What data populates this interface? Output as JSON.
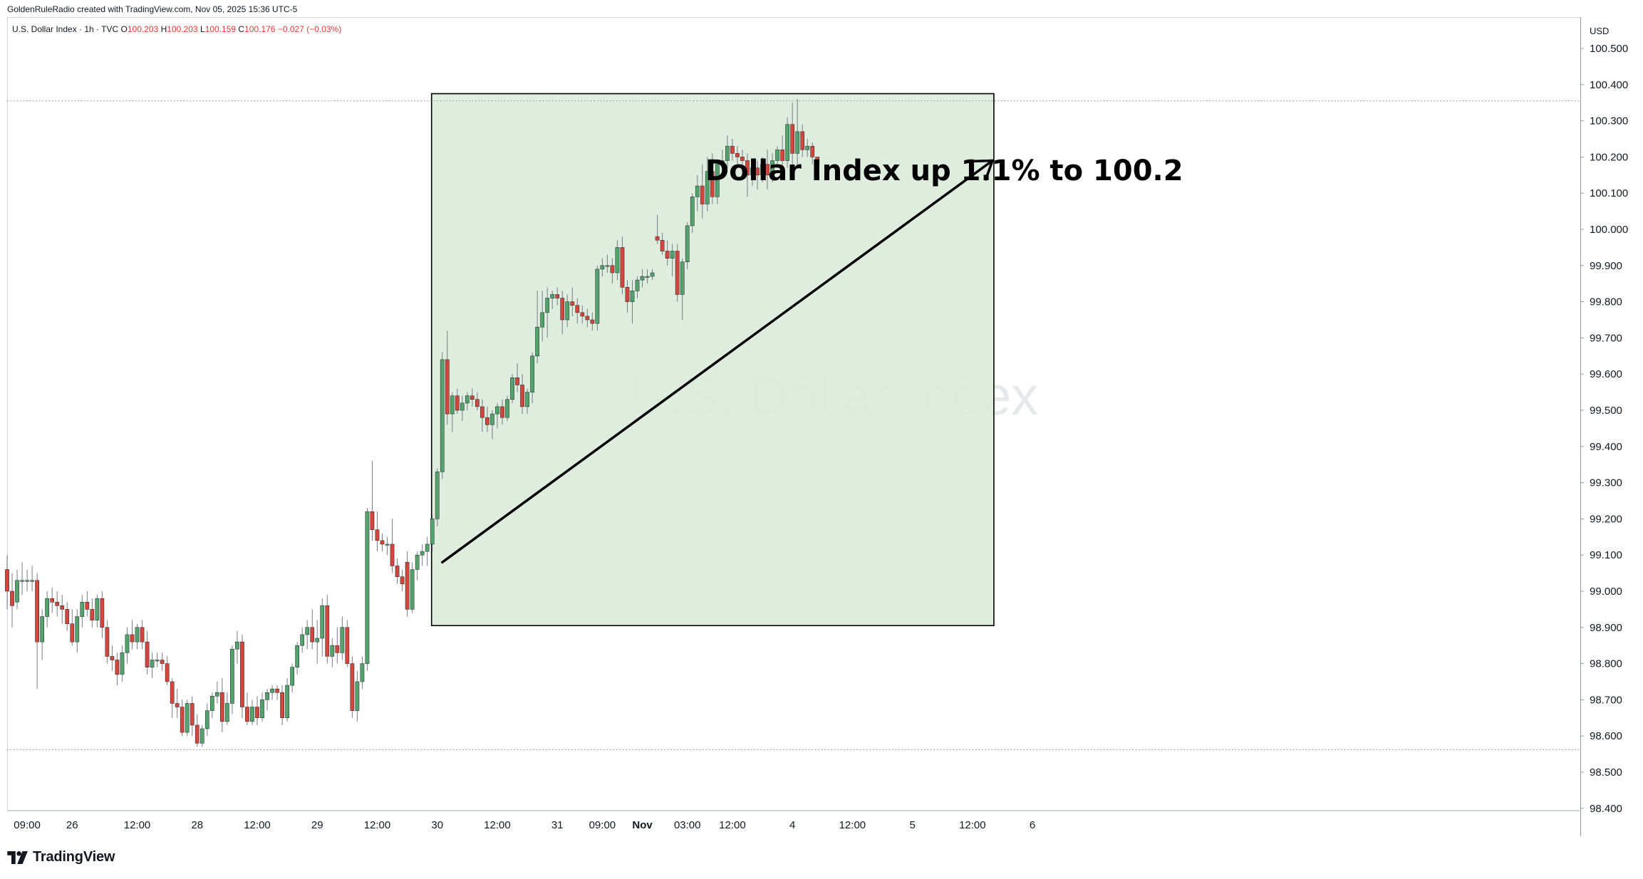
{
  "header": {
    "credit": "GoldenRuleRadio created with TradingView.com, Nov 05, 2025 15:36 UTC-5",
    "symbol": "U.S. Dollar Index · 1h · TVC",
    "open_label": "O",
    "open": "100.203",
    "high_label": "H",
    "high": "100.203",
    "low_label": "L",
    "low": "100.159",
    "close_label": "C",
    "close": "100.176",
    "change": "−0.027 (−0.03%)"
  },
  "watermark": "U.S. Dollar Index",
  "annotation": {
    "text": "Dollar Index up 1.1% to 100.2",
    "box_color": "#dcecdb"
  },
  "footer": {
    "brand": "TradingView"
  },
  "colors": {
    "up": "#53a36b",
    "down": "#d2463c",
    "wick": "#787b86",
    "annotation_box": "#dcecdb"
  },
  "chart_data": {
    "type": "candlestick",
    "timeframe": "1h",
    "currency_label": "USD",
    "y_ticks": [
      "100.500",
      "100.400",
      "100.300",
      "100.200",
      "100.100",
      "100.000",
      "99.900",
      "99.800",
      "99.700",
      "99.600",
      "99.500",
      "99.400",
      "99.300",
      "99.200",
      "99.100",
      "99.000",
      "98.900",
      "98.800",
      "98.700",
      "98.600",
      "98.500",
      "98.400"
    ],
    "ylim": [
      98.38,
      100.55
    ],
    "x_ticks": [
      {
        "label": "09:00",
        "bar": 4
      },
      {
        "label": "26",
        "bar": 13
      },
      {
        "label": "12:00",
        "bar": 26
      },
      {
        "label": "28",
        "bar": 38
      },
      {
        "label": "12:00",
        "bar": 50
      },
      {
        "label": "29",
        "bar": 62
      },
      {
        "label": "12:00",
        "bar": 74
      },
      {
        "label": "30",
        "bar": 86
      },
      {
        "label": "12:00",
        "bar": 98
      },
      {
        "label": "31",
        "bar": 110
      },
      {
        "label": "09:00",
        "bar": 119
      },
      {
        "label": "Nov",
        "bar": 127
      },
      {
        "label": "03:00",
        "bar": 136
      },
      {
        "label": "12:00",
        "bar": 145
      },
      {
        "label": "4",
        "bar": 157
      },
      {
        "label": "12:00",
        "bar": 169
      },
      {
        "label": "5",
        "bar": 181
      },
      {
        "label": "12:00",
        "bar": 193
      },
      {
        "label": "6",
        "bar": 205
      }
    ],
    "range_lines": [
      100.355,
      98.562
    ],
    "annotation_range": {
      "from_bar": 85,
      "to_bar": 197,
      "low": 98.905,
      "high": 100.375
    },
    "trend_arrow": {
      "from_bar": 87,
      "from_price": 99.08,
      "to_bar": 197,
      "to_price": 100.19
    },
    "candles": [
      {
        "o": 99.06,
        "h": 99.1,
        "l": 98.95,
        "c": 99.0
      },
      {
        "o": 99.0,
        "h": 99.05,
        "l": 98.9,
        "c": 98.96
      },
      {
        "o": 98.97,
        "h": 99.06,
        "l": 98.95,
        "c": 99.03
      },
      {
        "o": 99.03,
        "h": 99.08,
        "l": 98.99,
        "c": 99.03
      },
      {
        "o": 99.03,
        "h": 99.06,
        "l": 99.0,
        "c": 99.03
      },
      {
        "o": 99.03,
        "h": 99.07,
        "l": 99.0,
        "c": 99.03
      },
      {
        "o": 99.03,
        "h": 99.05,
        "l": 98.73,
        "c": 98.86
      },
      {
        "o": 98.86,
        "h": 98.95,
        "l": 98.81,
        "c": 98.93
      },
      {
        "o": 98.93,
        "h": 99.0,
        "l": 98.9,
        "c": 98.98
      },
      {
        "o": 98.98,
        "h": 99.01,
        "l": 98.94,
        "c": 98.97
      },
      {
        "o": 98.97,
        "h": 99.0,
        "l": 98.93,
        "c": 98.96
      },
      {
        "o": 98.96,
        "h": 98.99,
        "l": 98.91,
        "c": 98.95
      },
      {
        "o": 98.95,
        "h": 98.97,
        "l": 98.89,
        "c": 98.91
      },
      {
        "o": 98.91,
        "h": 98.95,
        "l": 98.85,
        "c": 98.86
      },
      {
        "o": 98.86,
        "h": 98.95,
        "l": 98.83,
        "c": 98.93
      },
      {
        "o": 98.93,
        "h": 98.99,
        "l": 98.9,
        "c": 98.97
      },
      {
        "o": 98.97,
        "h": 99.0,
        "l": 98.93,
        "c": 98.95
      },
      {
        "o": 98.95,
        "h": 98.98,
        "l": 98.9,
        "c": 98.92
      },
      {
        "o": 98.92,
        "h": 98.99,
        "l": 98.9,
        "c": 98.98
      },
      {
        "o": 98.98,
        "h": 99.0,
        "l": 98.87,
        "c": 98.9
      },
      {
        "o": 98.9,
        "h": 98.92,
        "l": 98.8,
        "c": 98.82
      },
      {
        "o": 98.82,
        "h": 98.85,
        "l": 98.78,
        "c": 98.81
      },
      {
        "o": 98.81,
        "h": 98.83,
        "l": 98.74,
        "c": 98.77
      },
      {
        "o": 98.77,
        "h": 98.85,
        "l": 98.75,
        "c": 98.83
      },
      {
        "o": 98.83,
        "h": 98.9,
        "l": 98.8,
        "c": 98.88
      },
      {
        "o": 98.88,
        "h": 98.92,
        "l": 98.84,
        "c": 98.86
      },
      {
        "o": 98.86,
        "h": 98.91,
        "l": 98.84,
        "c": 98.9
      },
      {
        "o": 98.9,
        "h": 98.92,
        "l": 98.84,
        "c": 98.86
      },
      {
        "o": 98.86,
        "h": 98.89,
        "l": 98.77,
        "c": 98.79
      },
      {
        "o": 98.79,
        "h": 98.83,
        "l": 98.76,
        "c": 98.81
      },
      {
        "o": 98.81,
        "h": 98.83,
        "l": 98.79,
        "c": 98.81
      },
      {
        "o": 98.81,
        "h": 98.83,
        "l": 98.78,
        "c": 98.8
      },
      {
        "o": 98.8,
        "h": 98.82,
        "l": 98.74,
        "c": 98.75
      },
      {
        "o": 98.75,
        "h": 98.76,
        "l": 98.65,
        "c": 98.69
      },
      {
        "o": 98.69,
        "h": 98.73,
        "l": 98.65,
        "c": 98.68
      },
      {
        "o": 98.68,
        "h": 98.7,
        "l": 98.6,
        "c": 98.61
      },
      {
        "o": 98.61,
        "h": 98.7,
        "l": 98.6,
        "c": 98.69
      },
      {
        "o": 98.69,
        "h": 98.71,
        "l": 98.6,
        "c": 98.63
      },
      {
        "o": 98.63,
        "h": 98.66,
        "l": 98.57,
        "c": 98.58
      },
      {
        "o": 98.58,
        "h": 98.63,
        "l": 98.57,
        "c": 98.62
      },
      {
        "o": 98.62,
        "h": 98.69,
        "l": 98.6,
        "c": 98.67
      },
      {
        "o": 98.67,
        "h": 98.72,
        "l": 98.65,
        "c": 98.71
      },
      {
        "o": 98.71,
        "h": 98.75,
        "l": 98.69,
        "c": 98.72
      },
      {
        "o": 98.72,
        "h": 98.76,
        "l": 98.61,
        "c": 98.64
      },
      {
        "o": 98.64,
        "h": 98.72,
        "l": 98.63,
        "c": 98.69
      },
      {
        "o": 98.69,
        "h": 98.85,
        "l": 98.66,
        "c": 98.84
      },
      {
        "o": 98.84,
        "h": 98.89,
        "l": 98.8,
        "c": 98.86
      },
      {
        "o": 98.86,
        "h": 98.88,
        "l": 98.65,
        "c": 98.68
      },
      {
        "o": 98.68,
        "h": 98.72,
        "l": 98.63,
        "c": 98.64
      },
      {
        "o": 98.64,
        "h": 98.7,
        "l": 98.63,
        "c": 98.68
      },
      {
        "o": 98.68,
        "h": 98.71,
        "l": 98.63,
        "c": 98.65
      },
      {
        "o": 98.65,
        "h": 98.72,
        "l": 98.64,
        "c": 98.7
      },
      {
        "o": 98.7,
        "h": 98.73,
        "l": 98.67,
        "c": 98.72
      },
      {
        "o": 98.72,
        "h": 98.74,
        "l": 98.7,
        "c": 98.73
      },
      {
        "o": 98.73,
        "h": 98.74,
        "l": 98.7,
        "c": 98.72
      },
      {
        "o": 98.72,
        "h": 98.74,
        "l": 98.63,
        "c": 98.65
      },
      {
        "o": 98.65,
        "h": 98.76,
        "l": 98.64,
        "c": 98.74
      },
      {
        "o": 98.74,
        "h": 98.8,
        "l": 98.72,
        "c": 98.79
      },
      {
        "o": 98.79,
        "h": 98.86,
        "l": 98.77,
        "c": 98.85
      },
      {
        "o": 98.85,
        "h": 98.9,
        "l": 98.83,
        "c": 98.88
      },
      {
        "o": 98.88,
        "h": 98.92,
        "l": 98.84,
        "c": 98.9
      },
      {
        "o": 98.9,
        "h": 98.95,
        "l": 98.84,
        "c": 98.86
      },
      {
        "o": 98.86,
        "h": 98.92,
        "l": 98.8,
        "c": 98.87
      },
      {
        "o": 98.87,
        "h": 98.98,
        "l": 98.82,
        "c": 98.96
      },
      {
        "o": 98.96,
        "h": 98.99,
        "l": 98.8,
        "c": 98.82
      },
      {
        "o": 98.82,
        "h": 98.87,
        "l": 98.79,
        "c": 98.85
      },
      {
        "o": 98.85,
        "h": 98.9,
        "l": 98.8,
        "c": 98.83
      },
      {
        "o": 98.83,
        "h": 98.93,
        "l": 98.81,
        "c": 98.9
      },
      {
        "o": 98.9,
        "h": 98.92,
        "l": 98.79,
        "c": 98.8
      },
      {
        "o": 98.8,
        "h": 98.82,
        "l": 98.65,
        "c": 98.67
      },
      {
        "o": 98.67,
        "h": 98.78,
        "l": 98.64,
        "c": 98.75
      },
      {
        "o": 98.75,
        "h": 98.82,
        "l": 98.73,
        "c": 98.8
      },
      {
        "o": 98.8,
        "h": 99.23,
        "l": 98.78,
        "c": 99.22
      },
      {
        "o": 99.22,
        "h": 99.36,
        "l": 99.14,
        "c": 99.17
      },
      {
        "o": 99.17,
        "h": 99.22,
        "l": 99.11,
        "c": 99.14
      },
      {
        "o": 99.14,
        "h": 99.16,
        "l": 99.11,
        "c": 99.13
      },
      {
        "o": 99.13,
        "h": 99.15,
        "l": 99.1,
        "c": 99.13
      },
      {
        "o": 99.13,
        "h": 99.2,
        "l": 99.05,
        "c": 99.07
      },
      {
        "o": 99.07,
        "h": 99.09,
        "l": 99.02,
        "c": 99.04
      },
      {
        "o": 99.04,
        "h": 99.06,
        "l": 99.0,
        "c": 99.02
      },
      {
        "o": 99.08,
        "h": 99.11,
        "l": 98.93,
        "c": 98.95
      },
      {
        "o": 98.95,
        "h": 99.08,
        "l": 98.94,
        "c": 99.06
      },
      {
        "o": 99.06,
        "h": 99.11,
        "l": 99.03,
        "c": 99.1
      },
      {
        "o": 99.1,
        "h": 99.13,
        "l": 99.07,
        "c": 99.11
      },
      {
        "o": 99.11,
        "h": 99.15,
        "l": 99.07,
        "c": 99.13
      },
      {
        "o": 99.13,
        "h": 99.21,
        "l": 99.11,
        "c": 99.2
      },
      {
        "o": 99.2,
        "h": 99.34,
        "l": 99.18,
        "c": 99.33
      },
      {
        "o": 99.33,
        "h": 99.66,
        "l": 99.31,
        "c": 99.64
      },
      {
        "o": 99.64,
        "h": 99.72,
        "l": 99.46,
        "c": 99.49
      },
      {
        "o": 99.49,
        "h": 99.55,
        "l": 99.44,
        "c": 99.54
      },
      {
        "o": 99.54,
        "h": 99.56,
        "l": 99.49,
        "c": 99.5
      },
      {
        "o": 99.5,
        "h": 99.54,
        "l": 99.47,
        "c": 99.52
      },
      {
        "o": 99.52,
        "h": 99.55,
        "l": 99.5,
        "c": 99.54
      },
      {
        "o": 99.54,
        "h": 99.56,
        "l": 99.51,
        "c": 99.53
      },
      {
        "o": 99.53,
        "h": 99.55,
        "l": 99.5,
        "c": 99.51
      },
      {
        "o": 99.51,
        "h": 99.53,
        "l": 99.44,
        "c": 99.48
      },
      {
        "o": 99.48,
        "h": 99.51,
        "l": 99.44,
        "c": 99.46
      },
      {
        "o": 99.46,
        "h": 99.5,
        "l": 99.42,
        "c": 99.49
      },
      {
        "o": 99.49,
        "h": 99.52,
        "l": 99.45,
        "c": 99.51
      },
      {
        "o": 99.51,
        "h": 99.53,
        "l": 99.46,
        "c": 99.48
      },
      {
        "o": 99.48,
        "h": 99.54,
        "l": 99.47,
        "c": 99.53
      },
      {
        "o": 99.53,
        "h": 99.6,
        "l": 99.52,
        "c": 99.59
      },
      {
        "o": 99.59,
        "h": 99.63,
        "l": 99.55,
        "c": 99.57
      },
      {
        "o": 99.57,
        "h": 99.6,
        "l": 99.49,
        "c": 99.51
      },
      {
        "o": 99.51,
        "h": 99.56,
        "l": 99.49,
        "c": 99.55
      },
      {
        "o": 99.55,
        "h": 99.66,
        "l": 99.52,
        "c": 99.65
      },
      {
        "o": 99.65,
        "h": 99.83,
        "l": 99.63,
        "c": 99.73
      },
      {
        "o": 99.73,
        "h": 99.83,
        "l": 99.69,
        "c": 99.77
      },
      {
        "o": 99.77,
        "h": 99.84,
        "l": 99.7,
        "c": 99.81
      },
      {
        "o": 99.81,
        "h": 99.83,
        "l": 99.78,
        "c": 99.82
      },
      {
        "o": 99.82,
        "h": 99.84,
        "l": 99.79,
        "c": 99.81
      },
      {
        "o": 99.81,
        "h": 99.83,
        "l": 99.71,
        "c": 99.75
      },
      {
        "o": 99.75,
        "h": 99.82,
        "l": 99.73,
        "c": 99.8
      },
      {
        "o": 99.8,
        "h": 99.84,
        "l": 99.76,
        "c": 99.79
      },
      {
        "o": 99.79,
        "h": 99.81,
        "l": 99.74,
        "c": 99.77
      },
      {
        "o": 99.77,
        "h": 99.79,
        "l": 99.74,
        "c": 99.76
      },
      {
        "o": 99.76,
        "h": 99.78,
        "l": 99.73,
        "c": 99.75
      },
      {
        "o": 99.75,
        "h": 99.77,
        "l": 99.72,
        "c": 99.74
      },
      {
        "o": 99.74,
        "h": 99.9,
        "l": 99.72,
        "c": 99.89
      },
      {
        "o": 99.89,
        "h": 99.92,
        "l": 99.87,
        "c": 99.9
      },
      {
        "o": 99.9,
        "h": 99.93,
        "l": 99.88,
        "c": 99.9
      },
      {
        "o": 99.9,
        "h": 99.92,
        "l": 99.85,
        "c": 99.88
      },
      {
        "o": 99.88,
        "h": 99.97,
        "l": 99.86,
        "c": 99.95
      },
      {
        "o": 99.95,
        "h": 99.98,
        "l": 99.82,
        "c": 99.84
      },
      {
        "o": 99.84,
        "h": 99.86,
        "l": 99.77,
        "c": 99.8
      },
      {
        "o": 99.8,
        "h": 99.86,
        "l": 99.74,
        "c": 99.83
      },
      {
        "o": 99.83,
        "h": 99.87,
        "l": 99.81,
        "c": 99.86
      },
      {
        "o": 99.86,
        "h": 99.89,
        "l": 99.84,
        "c": 99.87
      },
      {
        "o": 99.87,
        "h": 99.89,
        "l": 99.85,
        "c": 99.87
      },
      {
        "o": 99.87,
        "h": 99.89,
        "l": 99.86,
        "c": 99.88
      },
      {
        "o": 99.98,
        "h": 100.04,
        "l": 99.96,
        "c": 99.97
      },
      {
        "o": 99.97,
        "h": 99.99,
        "l": 99.93,
        "c": 99.94
      },
      {
        "o": 99.94,
        "h": 99.97,
        "l": 99.9,
        "c": 99.92
      },
      {
        "o": 99.92,
        "h": 99.96,
        "l": 99.87,
        "c": 99.94
      },
      {
        "o": 99.94,
        "h": 99.96,
        "l": 99.8,
        "c": 99.82
      },
      {
        "o": 99.82,
        "h": 99.92,
        "l": 99.75,
        "c": 99.91
      },
      {
        "o": 99.91,
        "h": 100.02,
        "l": 99.89,
        "c": 100.01
      },
      {
        "o": 100.01,
        "h": 100.1,
        "l": 99.99,
        "c": 100.09
      },
      {
        "o": 100.09,
        "h": 100.15,
        "l": 100.05,
        "c": 100.12
      },
      {
        "o": 100.12,
        "h": 100.18,
        "l": 100.03,
        "c": 100.07
      },
      {
        "o": 100.07,
        "h": 100.2,
        "l": 100.05,
        "c": 100.16
      },
      {
        "o": 100.16,
        "h": 100.21,
        "l": 100.07,
        "c": 100.09
      },
      {
        "o": 100.09,
        "h": 100.19,
        "l": 100.07,
        "c": 100.18
      },
      {
        "o": 100.18,
        "h": 100.22,
        "l": 100.15,
        "c": 100.19
      },
      {
        "o": 100.19,
        "h": 100.26,
        "l": 100.17,
        "c": 100.23
      },
      {
        "o": 100.23,
        "h": 100.25,
        "l": 100.19,
        "c": 100.21
      },
      {
        "o": 100.21,
        "h": 100.23,
        "l": 100.18,
        "c": 100.2
      },
      {
        "o": 100.2,
        "h": 100.22,
        "l": 100.17,
        "c": 100.19
      },
      {
        "o": 100.19,
        "h": 100.21,
        "l": 100.09,
        "c": 100.15
      },
      {
        "o": 100.15,
        "h": 100.18,
        "l": 100.12,
        "c": 100.17
      },
      {
        "o": 100.17,
        "h": 100.19,
        "l": 100.11,
        "c": 100.15
      },
      {
        "o": 100.15,
        "h": 100.2,
        "l": 100.13,
        "c": 100.18
      },
      {
        "o": 100.18,
        "h": 100.22,
        "l": 100.11,
        "c": 100.15
      },
      {
        "o": 100.15,
        "h": 100.21,
        "l": 100.13,
        "c": 100.19
      },
      {
        "o": 100.19,
        "h": 100.23,
        "l": 100.17,
        "c": 100.22
      },
      {
        "o": 100.22,
        "h": 100.26,
        "l": 100.16,
        "c": 100.19
      },
      {
        "o": 100.19,
        "h": 100.31,
        "l": 100.17,
        "c": 100.29
      },
      {
        "o": 100.29,
        "h": 100.35,
        "l": 100.17,
        "c": 100.21
      },
      {
        "o": 100.21,
        "h": 100.36,
        "l": 100.18,
        "c": 100.27
      },
      {
        "o": 100.27,
        "h": 100.29,
        "l": 100.2,
        "c": 100.22
      },
      {
        "o": 100.22,
        "h": 100.25,
        "l": 100.2,
        "c": 100.23
      },
      {
        "o": 100.23,
        "h": 100.24,
        "l": 100.18,
        "c": 100.2
      },
      {
        "o": 100.2,
        "h": 100.2,
        "l": 100.16,
        "c": 100.18
      }
    ]
  }
}
